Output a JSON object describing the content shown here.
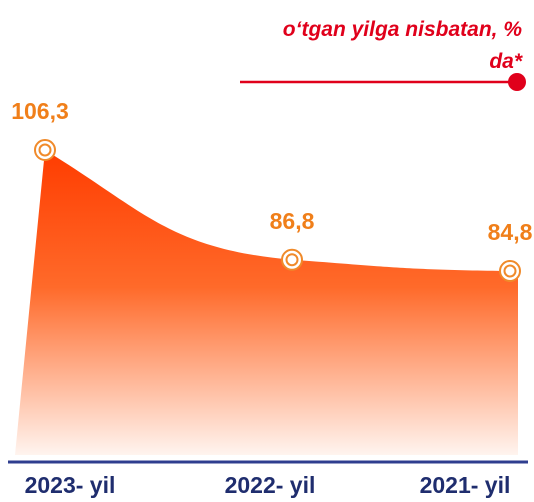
{
  "chart_data": {
    "type": "area",
    "categories": [
      "2023- yil",
      "2022- yil",
      "2021- yil"
    ],
    "series": [
      {
        "name": "o‘tgan yilga nisbatan, % da*",
        "color": "#e0001b",
        "values": [
          106.3,
          86.8,
          84.8
        ],
        "value_labels": [
          "106,3",
          "86,8",
          "84,8"
        ]
      }
    ]
  }
}
